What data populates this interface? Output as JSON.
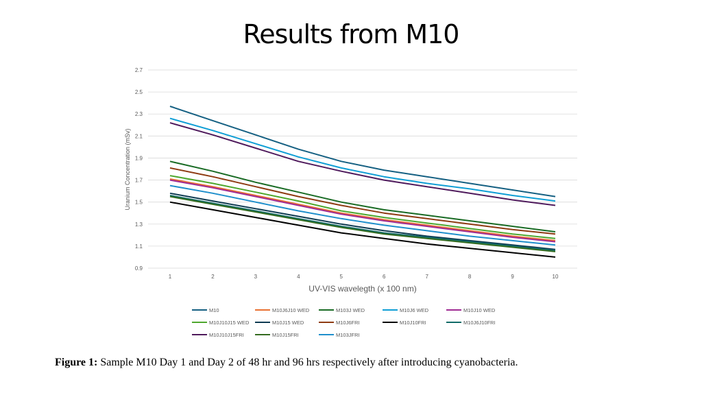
{
  "slide": {
    "title": "Results from M10",
    "caption_bold": "Figure 1:",
    "caption_text": " Sample M10 Day 1 and Day 2 of 48 hr and 96 hrs respectively after introducing cyanobacteria."
  },
  "chart_data": {
    "type": "line",
    "title": "",
    "xlabel": "UV-VIS wavelegth (x 100 nm)",
    "ylabel": "Uranium Concentration (mSv)",
    "x": [
      1,
      2,
      3,
      4,
      5,
      6,
      7,
      8,
      9,
      10
    ],
    "xlim": [
      1,
      10
    ],
    "ylim": [
      0.9,
      2.7
    ],
    "yticks": [
      "0.9",
      "1.1",
      "1.3",
      "1.5",
      "1.7",
      "1.9",
      "2.1",
      "2.3",
      "2.5",
      "2.7"
    ],
    "xticks": [
      "1",
      "2",
      "3",
      "4",
      "5",
      "6",
      "7",
      "8",
      "9",
      "10"
    ],
    "grid": true,
    "legend_position": "bottom",
    "series": [
      {
        "name": "M10",
        "color": "#156082",
        "values": [
          2.37,
          2.24,
          2.11,
          1.98,
          1.87,
          1.79,
          1.73,
          1.67,
          1.61,
          1.55
        ]
      },
      {
        "name": "M10J6J10 WED",
        "color": "#E97132",
        "values": [
          1.71,
          1.64,
          1.56,
          1.48,
          1.4,
          1.34,
          1.29,
          1.24,
          1.19,
          1.15
        ]
      },
      {
        "name": "M103J WED",
        "color": "#196B24",
        "values": [
          1.87,
          1.78,
          1.68,
          1.59,
          1.5,
          1.43,
          1.38,
          1.33,
          1.28,
          1.23
        ]
      },
      {
        "name": "M10J6 WED",
        "color": "#0F9ED5",
        "values": [
          2.26,
          2.15,
          2.03,
          1.91,
          1.81,
          1.73,
          1.67,
          1.62,
          1.56,
          1.51
        ]
      },
      {
        "name": "M10J10 WED",
        "color": "#A02B93",
        "values": [
          1.7,
          1.63,
          1.55,
          1.47,
          1.39,
          1.33,
          1.28,
          1.23,
          1.18,
          1.14
        ]
      },
      {
        "name": "M10J10J15 WED",
        "color": "#4EA72E",
        "values": [
          1.74,
          1.67,
          1.59,
          1.51,
          1.42,
          1.36,
          1.31,
          1.26,
          1.21,
          1.17
        ]
      },
      {
        "name": "M10J15 WED",
        "color": "#0E3A52",
        "values": [
          1.58,
          1.51,
          1.44,
          1.37,
          1.3,
          1.24,
          1.19,
          1.15,
          1.11,
          1.07
        ]
      },
      {
        "name": "M10J6FRI",
        "color": "#8E3B12",
        "values": [
          1.81,
          1.73,
          1.64,
          1.55,
          1.47,
          1.4,
          1.35,
          1.3,
          1.25,
          1.21
        ]
      },
      {
        "name": "M10J10FRI",
        "color": "#000000",
        "values": [
          1.5,
          1.43,
          1.36,
          1.29,
          1.22,
          1.17,
          1.12,
          1.08,
          1.04,
          1.0
        ]
      },
      {
        "name": "M10J6J10FRI",
        "color": "#116B68",
        "values": [
          1.56,
          1.49,
          1.42,
          1.35,
          1.28,
          1.22,
          1.18,
          1.14,
          1.1,
          1.06
        ]
      },
      {
        "name": "M10J10J15FRI",
        "color": "#4F1A5C",
        "values": [
          2.22,
          2.11,
          1.99,
          1.87,
          1.78,
          1.7,
          1.64,
          1.58,
          1.52,
          1.47
        ]
      },
      {
        "name": "M10J15FRI",
        "color": "#336B1F",
        "values": [
          1.55,
          1.48,
          1.41,
          1.34,
          1.27,
          1.21,
          1.17,
          1.13,
          1.09,
          1.05
        ]
      },
      {
        "name": "M103JFRI",
        "color": "#1F8FCC",
        "values": [
          1.65,
          1.58,
          1.5,
          1.42,
          1.35,
          1.29,
          1.24,
          1.19,
          1.15,
          1.11
        ]
      }
    ]
  }
}
